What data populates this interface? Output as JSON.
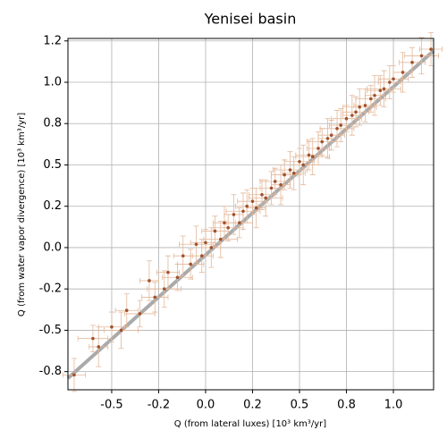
{
  "chart_data": {
    "type": "scatter",
    "title": "Yenisei basin",
    "xlabel": "Q (from lateral luxes) [10³ km³/yr]",
    "ylabel": "Q (from water vapor divergence) [10³ km³/yr]",
    "xlim": [
      -0.733,
      1.214
    ],
    "ylim": [
      -0.86,
      1.265
    ],
    "xticks": [
      -0.5,
      {
        "value": -0.25,
        "label": "-0.2"
      },
      {
        "value": 0,
        "label": "0.0"
      },
      {
        "value": 0.25,
        "label": "0.2"
      },
      0.5,
      {
        "value": 0.75,
        "label": "0.8"
      },
      {
        "value": 1,
        "label": "1.0"
      }
    ],
    "yticks": [
      {
        "value": -0.75,
        "label": "-0.8"
      },
      -0.5,
      {
        "value": -0.25,
        "label": "-0.2"
      },
      {
        "value": 0,
        "label": "0.0"
      },
      {
        "value": 0.25,
        "label": "0.2"
      },
      0.5,
      {
        "value": 0.75,
        "label": "0.8"
      },
      {
        "value": 1,
        "label": "1.0"
      },
      {
        "value": 1.25,
        "label": "1.2"
      }
    ],
    "grid": true,
    "fit_line": {
      "x": [
        -0.733,
        1.214
      ],
      "y": [
        -0.79,
        1.19
      ],
      "color": "#aaaaaa"
    },
    "series": [
      {
        "color": "#a0522d",
        "error_color": "#e3b89a",
        "x": [
          -0.7,
          -0.6,
          -0.57,
          -0.5,
          -0.45,
          -0.42,
          -0.35,
          -0.3,
          -0.27,
          -0.22,
          -0.2,
          -0.15,
          -0.12,
          -0.08,
          -0.05,
          -0.02,
          0.0,
          0.03,
          0.05,
          0.08,
          0.1,
          0.12,
          0.15,
          0.18,
          0.2,
          0.22,
          0.25,
          0.27,
          0.3,
          0.32,
          0.35,
          0.37,
          0.4,
          0.42,
          0.45,
          0.47,
          0.5,
          0.52,
          0.55,
          0.57,
          0.6,
          0.62,
          0.65,
          0.67,
          0.7,
          0.72,
          0.75,
          0.78,
          0.8,
          0.82,
          0.85,
          0.88,
          0.9,
          0.93,
          0.95,
          0.98,
          1.0,
          1.05,
          1.1,
          1.15,
          1.2
        ],
        "values": [
          -0.77,
          -0.55,
          -0.6,
          -0.48,
          -0.5,
          -0.38,
          -0.4,
          -0.2,
          -0.3,
          -0.25,
          -0.15,
          -0.18,
          -0.05,
          -0.1,
          0.02,
          -0.05,
          0.03,
          0.0,
          0.1,
          0.05,
          0.15,
          0.12,
          0.2,
          0.15,
          0.22,
          0.25,
          0.28,
          0.24,
          0.32,
          0.3,
          0.36,
          0.4,
          0.38,
          0.44,
          0.47,
          0.45,
          0.52,
          0.5,
          0.56,
          0.55,
          0.6,
          0.64,
          0.66,
          0.68,
          0.72,
          0.74,
          0.78,
          0.8,
          0.82,
          0.85,
          0.86,
          0.9,
          0.92,
          0.95,
          0.96,
          1.0,
          1.02,
          1.06,
          1.12,
          1.16,
          1.2
        ],
        "xerr": [
          0.06,
          0.08,
          0.05,
          0.07,
          0.09,
          0.06,
          0.08,
          0.05,
          0.07,
          0.09,
          0.06,
          0.08,
          0.05,
          0.07,
          0.09,
          0.06,
          0.08,
          0.05,
          0.07,
          0.09,
          0.06,
          0.08,
          0.05,
          0.07,
          0.09,
          0.06,
          0.08,
          0.05,
          0.07,
          0.09,
          0.06,
          0.08,
          0.05,
          0.07,
          0.09,
          0.06,
          0.08,
          0.05,
          0.07,
          0.09,
          0.06,
          0.08,
          0.05,
          0.07,
          0.09,
          0.06,
          0.08,
          0.05,
          0.07,
          0.09,
          0.06,
          0.08,
          0.05,
          0.07,
          0.09,
          0.06,
          0.08,
          0.05,
          0.07,
          0.09,
          0.06
        ],
        "yerr": [
          0.1,
          0.08,
          0.12,
          0.09,
          0.11,
          0.1,
          0.08,
          0.12,
          0.09,
          0.11,
          0.1,
          0.08,
          0.12,
          0.09,
          0.11,
          0.1,
          0.08,
          0.12,
          0.09,
          0.11,
          0.1,
          0.08,
          0.12,
          0.09,
          0.11,
          0.1,
          0.08,
          0.12,
          0.09,
          0.11,
          0.1,
          0.08,
          0.12,
          0.09,
          0.11,
          0.1,
          0.08,
          0.12,
          0.09,
          0.11,
          0.1,
          0.08,
          0.12,
          0.09,
          0.11,
          0.1,
          0.08,
          0.12,
          0.09,
          0.11,
          0.1,
          0.08,
          0.12,
          0.09,
          0.11,
          0.1,
          0.08,
          0.12,
          0.09,
          0.11,
          0.1
        ]
      }
    ]
  }
}
